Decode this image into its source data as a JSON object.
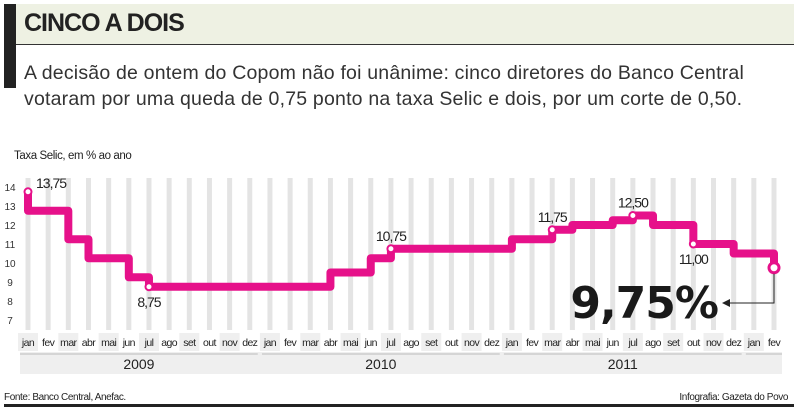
{
  "header": {
    "title": "CINCO A DOIS",
    "subtitle": "A decisão de ontem do Copom não foi unânime: cinco diretores do Banco Central votaram por uma queda de 0,75 ponto na taxa Selic e dois, por um corte de 0,50."
  },
  "chart_data": {
    "type": "line",
    "style": "step",
    "ylabel": "Taxa Selic, em % ao ano",
    "ylim": [
      7,
      14
    ],
    "yticks": [
      "14",
      "13",
      "12",
      "11",
      "10",
      "9",
      "8",
      "7"
    ],
    "months": [
      "jan",
      "fev",
      "mar",
      "abr",
      "mai",
      "jun",
      "jul",
      "ago",
      "set",
      "out",
      "nov",
      "dez",
      "jan",
      "fev",
      "mar",
      "abr",
      "mai",
      "jun",
      "jul",
      "ago",
      "set",
      "out",
      "nov",
      "dez",
      "jan",
      "fev",
      "mar",
      "abr",
      "mai",
      "jun",
      "jul",
      "ago",
      "set",
      "out",
      "nov",
      "dez",
      "jan",
      "fev"
    ],
    "years": [
      {
        "label": "2009",
        "start": "2009-01",
        "end": "2009-12"
      },
      {
        "label": "2010",
        "start": "2010-01",
        "end": "2010-12"
      },
      {
        "label": "2011",
        "start": "2011-01",
        "end": "2011-12"
      },
      {
        "label": "",
        "start": "2012-01",
        "end": "2012-02"
      }
    ],
    "steps": [
      {
        "date": "2009-01",
        "value": 13.75
      },
      {
        "date": "2009-01",
        "value": 12.75
      },
      {
        "date": "2009-03",
        "value": 11.25
      },
      {
        "date": "2009-04",
        "value": 10.25
      },
      {
        "date": "2009-06",
        "value": 9.25
      },
      {
        "date": "2009-07",
        "value": 8.75
      },
      {
        "date": "2010-04",
        "value": 9.5
      },
      {
        "date": "2010-06",
        "value": 10.25
      },
      {
        "date": "2010-07",
        "value": 10.75
      },
      {
        "date": "2011-01",
        "value": 11.25
      },
      {
        "date": "2011-03",
        "value": 11.75
      },
      {
        "date": "2011-04",
        "value": 12.0
      },
      {
        "date": "2011-06",
        "value": 12.25
      },
      {
        "date": "2011-07",
        "value": 12.5
      },
      {
        "date": "2011-08",
        "value": 12.0
      },
      {
        "date": "2011-10",
        "value": 11.0
      },
      {
        "date": "2011-12",
        "value": 10.5
      },
      {
        "date": "2012-02",
        "value": 9.75
      }
    ],
    "annotations": [
      {
        "date": "2009-01",
        "value": 13.75,
        "label": "13,75",
        "pos": "right"
      },
      {
        "date": "2009-07",
        "value": 8.75,
        "label": "8,75",
        "pos": "below"
      },
      {
        "date": "2010-07",
        "value": 10.75,
        "label": "10,75",
        "pos": "above"
      },
      {
        "date": "2011-03",
        "value": 11.75,
        "label": "11,75",
        "pos": "above"
      },
      {
        "date": "2011-07",
        "value": 12.5,
        "label": "12,50",
        "pos": "above"
      },
      {
        "date": "2011-10",
        "value": 11.0,
        "label": "11,00",
        "pos": "below"
      }
    ],
    "highlight": {
      "date": "2012-02",
      "value": 9.75,
      "label": "9,75%"
    },
    "line_color": "#e6118a",
    "grid": "vertical"
  },
  "footer": {
    "source": "Fonte: Banco Central, Anefac.",
    "credit": "Infografia: Gazeta do Povo"
  }
}
